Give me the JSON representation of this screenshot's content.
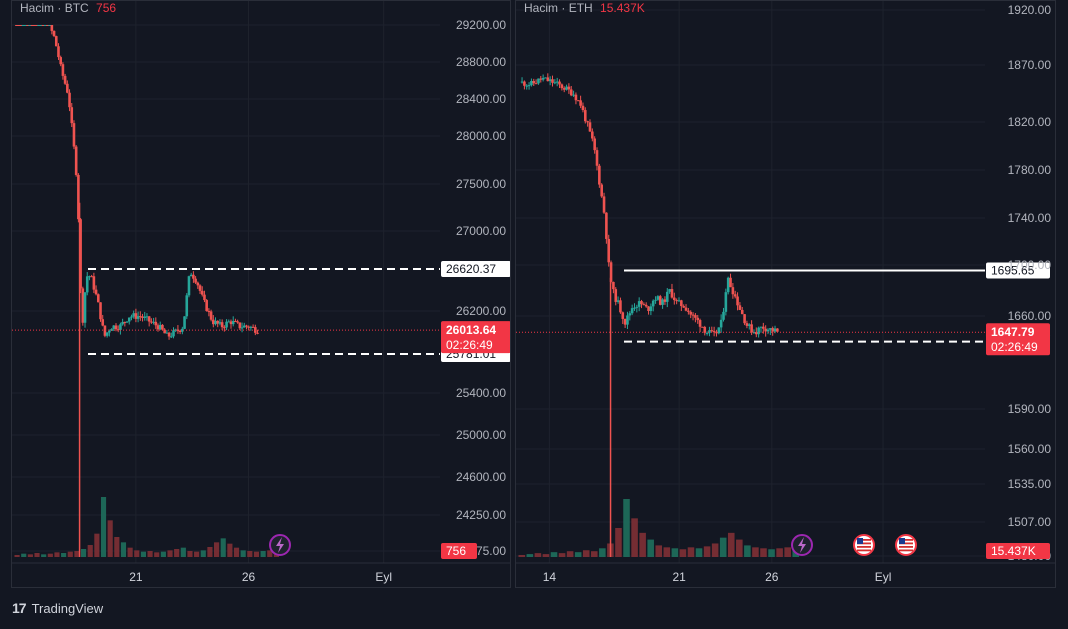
{
  "chart_data": [
    {
      "type": "candlestick",
      "legend_label": "Hacim",
      "symbol": "BTC",
      "volume_label": "756",
      "price_axis_ticks": [
        "29200.00",
        "28800.00",
        "28400.00",
        "28000.00",
        "27500.00",
        "27000.00",
        "26200.00",
        "25400.00",
        "25000.00",
        "24600.00",
        "24250.00",
        "23875.00"
      ],
      "price_axis_tick_values": [
        29200,
        28800,
        28400,
        28000,
        27500,
        27000,
        26200,
        25400,
        25000,
        24600,
        24250,
        23875
      ],
      "time_axis_labels": [
        {
          "label": "21",
          "day": 21
        },
        {
          "label": "26",
          "day": 26
        },
        {
          "label": "Eyl",
          "day": 32
        }
      ],
      "x_range_days": [
        15.5,
        34.5
      ],
      "levels": [
        {
          "label": "26620.37",
          "value": 26620.37,
          "style": "dashed",
          "color": "#ffffff"
        },
        {
          "label": "25781.01",
          "value": 25781.01,
          "style": "dashed",
          "color": "#ffffff"
        }
      ],
      "current_price": {
        "label": "26013.64",
        "value": 26013.64,
        "countdown": "02:26:49",
        "color": "#f23645"
      },
      "price_series": [
        [
          15.6,
          29400
        ],
        [
          16.2,
          29350
        ],
        [
          16.7,
          29280
        ],
        [
          17.1,
          29230
        ],
        [
          17.4,
          29050
        ],
        [
          17.7,
          28700
        ],
        [
          18.0,
          28450
        ],
        [
          18.2,
          28000
        ],
        [
          18.4,
          27500
        ],
        [
          18.6,
          26000
        ],
        [
          18.8,
          26550
        ],
        [
          19.0,
          26550
        ],
        [
          19.3,
          26300
        ],
        [
          19.6,
          25950
        ],
        [
          19.9,
          26050
        ],
        [
          20.3,
          26050
        ],
        [
          20.7,
          26150
        ],
        [
          21.2,
          26150
        ],
        [
          21.6,
          26100
        ],
        [
          22.0,
          26050
        ],
        [
          22.4,
          25950
        ],
        [
          22.8,
          26000
        ],
        [
          23.1,
          26050
        ],
        [
          23.4,
          26600
        ],
        [
          23.7,
          26500
        ],
        [
          24.0,
          26300
        ],
        [
          24.4,
          26100
        ],
        [
          24.8,
          26050
        ],
        [
          25.2,
          26100
        ],
        [
          25.6,
          26050
        ],
        [
          26.0,
          26050
        ],
        [
          26.4,
          26013
        ]
      ],
      "volume_bars": [
        3,
        5,
        4,
        6,
        4,
        5,
        7,
        6,
        8,
        9,
        12,
        18,
        35,
        90,
        55,
        30,
        22,
        14,
        10,
        8,
        9,
        7,
        8,
        10,
        12,
        14,
        9,
        8,
        10,
        15,
        22,
        28,
        20,
        14,
        10,
        9,
        8,
        9,
        10,
        8
      ]
    },
    {
      "type": "candlestick",
      "legend_label": "Hacim",
      "symbol": "ETH",
      "volume_label": "15.437K",
      "price_axis_ticks": [
        "1920.00",
        "1870.00",
        "1820.00",
        "1780.00",
        "1740.00",
        "1700.00",
        "1660.00",
        "1590.00",
        "1560.00",
        "1535.00",
        "1507.00",
        "1480.00"
      ],
      "price_axis_tick_values": [
        1920,
        1870,
        1820,
        1780,
        1740,
        1700,
        1660,
        1590,
        1560,
        1535,
        1507,
        1480
      ],
      "time_axis_labels": [
        {
          "label": "14",
          "day": 14
        },
        {
          "label": "21",
          "day": 21
        },
        {
          "label": "26",
          "day": 26
        },
        {
          "label": "Eyl",
          "day": 32
        }
      ],
      "x_range_days": [
        12.2,
        37.5
      ],
      "levels": [
        {
          "label": "1695.65",
          "value": 1695.65,
          "style": "solid",
          "color": "#ffffff"
        },
        {
          "label": "1640.72",
          "value": 1640.72,
          "style": "dashed",
          "color": "#ffffff"
        }
      ],
      "current_price": {
        "label": "1647.79",
        "value": 1647.79,
        "countdown": "02:26:49",
        "color": "#f23645"
      },
      "price_series": [
        [
          12.4,
          1855
        ],
        [
          13.0,
          1853
        ],
        [
          13.6,
          1858
        ],
        [
          14.2,
          1855
        ],
        [
          14.8,
          1850
        ],
        [
          15.3,
          1845
        ],
        [
          15.7,
          1835
        ],
        [
          16.0,
          1820
        ],
        [
          16.4,
          1800
        ],
        [
          16.7,
          1770
        ],
        [
          17.0,
          1740
        ],
        [
          17.2,
          1700
        ],
        [
          17.4,
          1680
        ],
        [
          17.7,
          1670
        ],
        [
          18.1,
          1655
        ],
        [
          18.5,
          1668
        ],
        [
          18.9,
          1670
        ],
        [
          19.3,
          1665
        ],
        [
          19.7,
          1675
        ],
        [
          20.1,
          1670
        ],
        [
          20.5,
          1680
        ],
        [
          20.9,
          1670
        ],
        [
          21.3,
          1668
        ],
        [
          21.7,
          1660
        ],
        [
          22.1,
          1655
        ],
        [
          22.5,
          1648
        ],
        [
          22.9,
          1645
        ],
        [
          23.3,
          1655
        ],
        [
          23.6,
          1690
        ],
        [
          23.9,
          1680
        ],
        [
          24.3,
          1665
        ],
        [
          24.7,
          1652
        ],
        [
          25.1,
          1648
        ],
        [
          25.5,
          1652
        ],
        [
          25.9,
          1650
        ],
        [
          26.3,
          1648
        ]
      ],
      "volume_bars": [
        2,
        3,
        4,
        3,
        5,
        4,
        6,
        5,
        7,
        6,
        9,
        14,
        30,
        60,
        40,
        25,
        18,
        12,
        10,
        9,
        8,
        10,
        9,
        11,
        14,
        20,
        25,
        18,
        12,
        10,
        9,
        8,
        9,
        10,
        8
      ]
    }
  ],
  "event_icons": [
    "lightning-icon",
    "us-flag-icon",
    "us-flag-icon"
  ],
  "footer": {
    "brand": "TradingView"
  }
}
